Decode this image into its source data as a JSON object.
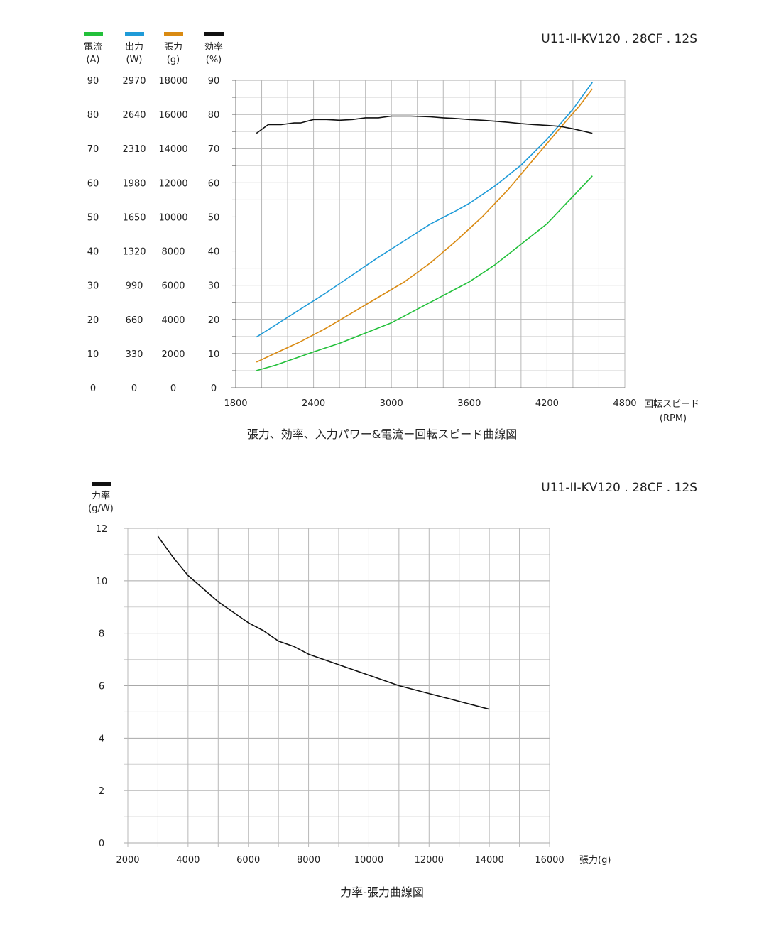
{
  "chart_data": [
    {
      "type": "line",
      "model": "U11-II-KV120 . 28CF . 12S",
      "title": "張力、効率、入力パワー&電流ー回転スピード曲線図",
      "xlabel": "回転スピード",
      "xunit": "(RPM)",
      "xlim": [
        1800,
        4800
      ],
      "x_ticks": [
        "1800",
        "2400",
        "3000",
        "3600",
        "4200",
        "4800"
      ],
      "grid": true,
      "y_axes": [
        {
          "key": "current",
          "name": "電流",
          "unit": "(A)",
          "color": "#22c03a",
          "max": 90,
          "ticks": [
            "0",
            "10",
            "20",
            "30",
            "40",
            "50",
            "60",
            "70",
            "80",
            "90"
          ]
        },
        {
          "key": "power",
          "name": "出力",
          "unit": "(W)",
          "color": "#1f9bd8",
          "max": 2970,
          "ticks": [
            "0",
            "330",
            "660",
            "990",
            "1320",
            "1650",
            "1980",
            "2310",
            "2640",
            "2970"
          ]
        },
        {
          "key": "thrust",
          "name": "張力",
          "unit": "(g)",
          "color": "#d98a12",
          "max": 18000,
          "ticks": [
            "0",
            "2000",
            "4000",
            "6000",
            "8000",
            "10000",
            "12000",
            "14000",
            "16000",
            "18000"
          ]
        },
        {
          "key": "efficiency",
          "name": "効率",
          "unit": "(%)",
          "color": "#111111",
          "max": 90,
          "ticks": [
            "0",
            "10",
            "20",
            "30",
            "40",
            "50",
            "60",
            "70",
            "80",
            "90"
          ]
        }
      ],
      "series": [
        {
          "name": "電流",
          "axis": "current",
          "x": [
            1960,
            2100,
            2250,
            2400,
            2600,
            2800,
            3000,
            3150,
            3300,
            3450,
            3600,
            3800,
            4000,
            4200,
            4400,
            4550
          ],
          "y": [
            5,
            6.5,
            8.5,
            10.5,
            13,
            16,
            19,
            22,
            25,
            28,
            31,
            36,
            42,
            48,
            56,
            62
          ]
        },
        {
          "name": "出力",
          "axis": "power",
          "x": [
            1960,
            2100,
            2300,
            2500,
            2700,
            2900,
            3100,
            3300,
            3500,
            3600,
            3800,
            4000,
            4200,
            4400,
            4550
          ],
          "y": [
            490,
            600,
            760,
            920,
            1090,
            1260,
            1420,
            1580,
            1710,
            1780,
            1950,
            2150,
            2400,
            2690,
            2950
          ]
        },
        {
          "name": "張力",
          "axis": "thrust",
          "x": [
            1960,
            2100,
            2300,
            2500,
            2700,
            2900,
            3100,
            3300,
            3500,
            3700,
            3900,
            4100,
            4300,
            4450,
            4550
          ],
          "y": [
            1500,
            2000,
            2700,
            3500,
            4400,
            5300,
            6200,
            7300,
            8600,
            10000,
            11600,
            13400,
            15200,
            16500,
            17500
          ]
        },
        {
          "name": "効率",
          "axis": "efficiency",
          "x": [
            1960,
            2050,
            2150,
            2250,
            2300,
            2400,
            2500,
            2600,
            2700,
            2800,
            2900,
            3000,
            3050,
            3150,
            3300,
            3400,
            3500,
            3600,
            3700,
            3800,
            3900,
            4000,
            4100,
            4200,
            4300,
            4400,
            4550
          ],
          "y": [
            74.5,
            77,
            77,
            77.5,
            77.5,
            78.5,
            78.5,
            78.3,
            78.5,
            79,
            79,
            79.5,
            79.5,
            79.5,
            79.3,
            79,
            78.8,
            78.5,
            78.3,
            78,
            77.7,
            77.3,
            77,
            76.8,
            76.5,
            75.8,
            74.5
          ]
        }
      ]
    },
    {
      "type": "line",
      "model": "U11-II-KV120 . 28CF . 12S",
      "title": "力率-張力曲線図",
      "xlabel": "張力(g)",
      "ylabel": "力率",
      "yunit": "(g/W)",
      "legend_color": "#111111",
      "xlim": [
        2000,
        16000
      ],
      "ylim": [
        0,
        12
      ],
      "x_ticks": [
        "2000",
        "4000",
        "6000",
        "8000",
        "10000",
        "12000",
        "14000",
        "16000"
      ],
      "y_ticks": [
        "0",
        "2",
        "4",
        "6",
        "8",
        "10",
        "12"
      ],
      "grid": true,
      "series": [
        {
          "name": "力率",
          "x": [
            3000,
            3500,
            4000,
            4500,
            5000,
            5500,
            6000,
            6500,
            7000,
            7500,
            8000,
            8500,
            9000,
            10000,
            11000,
            12000,
            13000,
            14000
          ],
          "y": [
            11.7,
            10.9,
            10.2,
            9.7,
            9.2,
            8.8,
            8.4,
            8.1,
            7.7,
            7.5,
            7.2,
            7.0,
            6.8,
            6.4,
            6.0,
            5.7,
            5.4,
            5.1
          ]
        }
      ]
    }
  ]
}
